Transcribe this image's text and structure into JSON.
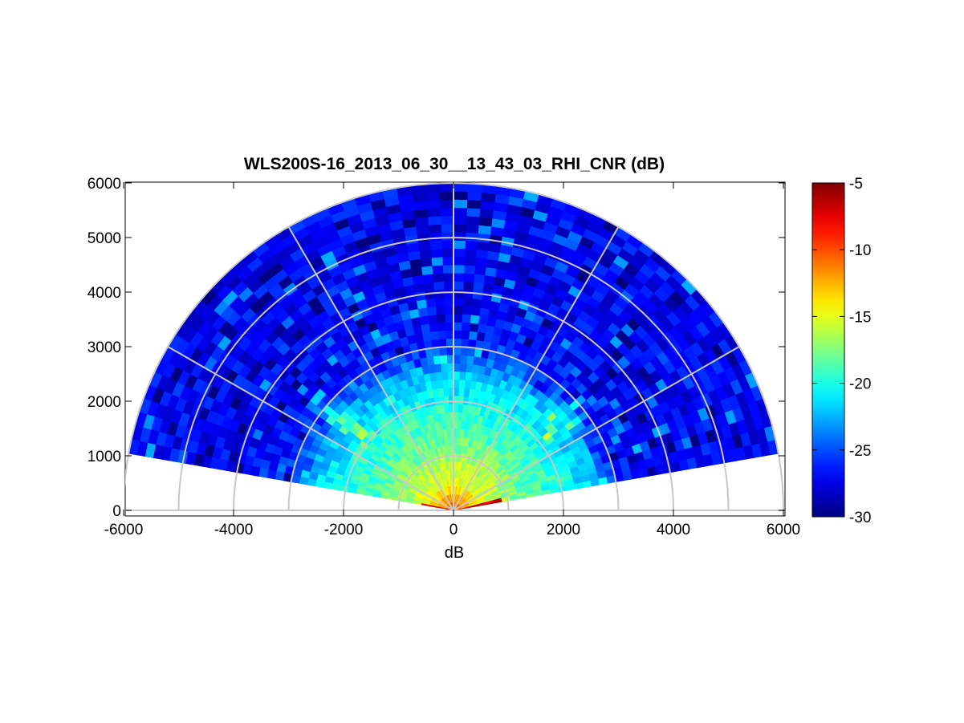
{
  "chart_data": {
    "type": "heatmap",
    "subtype": "polar-sector (RHI scan)",
    "title": "WLS200S-16_2013_06_30__13_43_03_RHI_CNR (dB)",
    "xlabel": "dB",
    "ylabel": "",
    "xlim": [
      -6000,
      6000
    ],
    "ylim": [
      0,
      6000
    ],
    "x_ticks": [
      "-6000",
      "-4000",
      "-2000",
      "0",
      "2000",
      "4000",
      "6000"
    ],
    "y_ticks": [
      "0",
      "1000",
      "2000",
      "3000",
      "4000",
      "5000",
      "6000"
    ],
    "colorbar": {
      "colormap": "jet",
      "range": [
        -30,
        -5
      ],
      "ticks": [
        "-5",
        "-10",
        "-15",
        "-20",
        "-25",
        "-30"
      ]
    },
    "scan": {
      "elevation_start_deg": 10,
      "elevation_end_deg": 170,
      "max_range_m": 6000,
      "polar_grid_range_step_m": 1000,
      "polar_grid_angle_step_deg": 30,
      "value_profile": [
        {
          "range_m": 0,
          "cnr_db": -10
        },
        {
          "range_m": 500,
          "cnr_db": -15
        },
        {
          "range_m": 1000,
          "cnr_db": -17
        },
        {
          "range_m": 1500,
          "cnr_db": -19
        },
        {
          "range_m": 2000,
          "cnr_db": -20
        },
        {
          "range_m": 2500,
          "cnr_db": -22
        },
        {
          "range_m": 3000,
          "cnr_db": -26
        },
        {
          "range_m": 4000,
          "cnr_db": -27
        },
        {
          "range_m": 6000,
          "cnr_db": -27
        }
      ]
    },
    "grid": true
  }
}
